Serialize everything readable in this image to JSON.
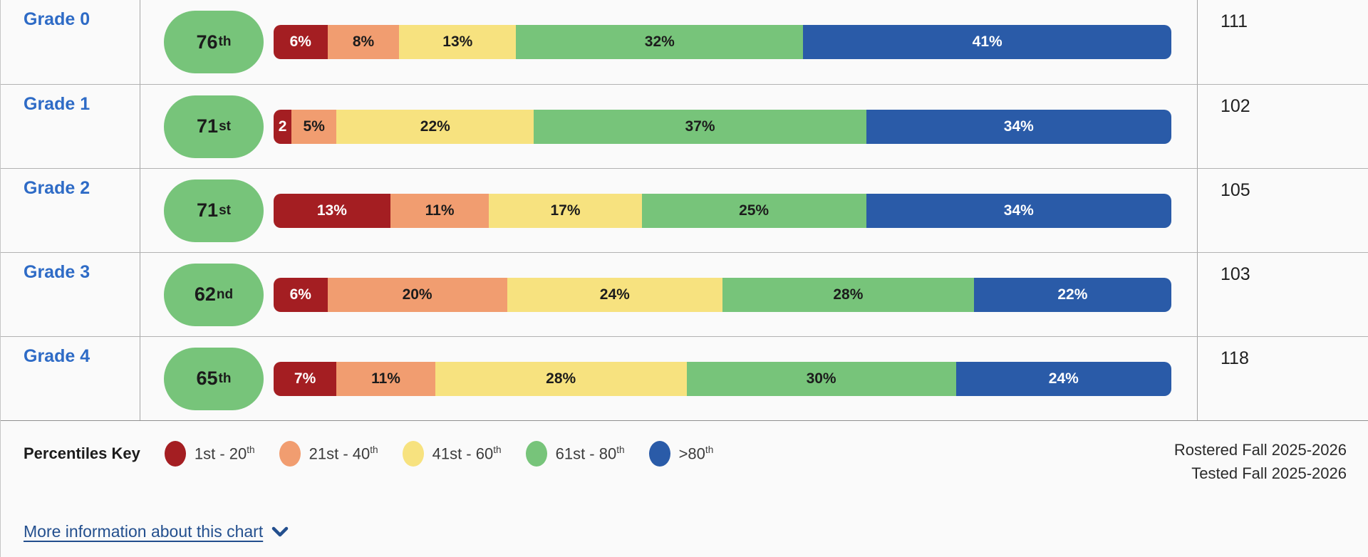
{
  "rows": [
    {
      "grade_label": "Grade 0",
      "percentile_value": "76",
      "percentile_suffix": "th",
      "count": "111",
      "segments": [
        {
          "band": "1st-20th",
          "value": 6,
          "label": "6%"
        },
        {
          "band": "21st-40th",
          "value": 8,
          "label": "8%"
        },
        {
          "band": "41st-60th",
          "value": 13,
          "label": "13%"
        },
        {
          "band": "61st-80th",
          "value": 32,
          "label": "32%"
        },
        {
          "band": "gt-80th",
          "value": 41,
          "label": "41%"
        }
      ]
    },
    {
      "grade_label": "Grade 1",
      "percentile_value": "71",
      "percentile_suffix": "st",
      "count": "102",
      "segments": [
        {
          "band": "1st-20th",
          "value": 2,
          "label": "2"
        },
        {
          "band": "21st-40th",
          "value": 5,
          "label": "5%"
        },
        {
          "band": "41st-60th",
          "value": 22,
          "label": "22%"
        },
        {
          "band": "61st-80th",
          "value": 37,
          "label": "37%"
        },
        {
          "band": "gt-80th",
          "value": 34,
          "label": "34%"
        }
      ]
    },
    {
      "grade_label": "Grade 2",
      "percentile_value": "71",
      "percentile_suffix": "st",
      "count": "105",
      "segments": [
        {
          "band": "1st-20th",
          "value": 13,
          "label": "13%"
        },
        {
          "band": "21st-40th",
          "value": 11,
          "label": "11%"
        },
        {
          "band": "41st-60th",
          "value": 17,
          "label": "17%"
        },
        {
          "band": "61st-80th",
          "value": 25,
          "label": "25%"
        },
        {
          "band": "gt-80th",
          "value": 34,
          "label": "34%"
        }
      ]
    },
    {
      "grade_label": "Grade 3",
      "percentile_value": "62",
      "percentile_suffix": "nd",
      "count": "103",
      "segments": [
        {
          "band": "1st-20th",
          "value": 6,
          "label": "6%"
        },
        {
          "band": "21st-40th",
          "value": 20,
          "label": "20%"
        },
        {
          "band": "41st-60th",
          "value": 24,
          "label": "24%"
        },
        {
          "band": "61st-80th",
          "value": 28,
          "label": "28%"
        },
        {
          "band": "gt-80th",
          "value": 22,
          "label": "22%"
        }
      ]
    },
    {
      "grade_label": "Grade 4",
      "percentile_value": "65",
      "percentile_suffix": "th",
      "count": "118",
      "segments": [
        {
          "band": "1st-20th",
          "value": 7,
          "label": "7%"
        },
        {
          "band": "21st-40th",
          "value": 11,
          "label": "11%"
        },
        {
          "band": "41st-60th",
          "value": 28,
          "label": "28%"
        },
        {
          "band": "61st-80th",
          "value": 30,
          "label": "30%"
        },
        {
          "band": "gt-80th",
          "value": 24,
          "label": "24%"
        }
      ]
    }
  ],
  "legend": {
    "title": "Percentiles Key",
    "items": [
      {
        "band": "1st-20th",
        "label": "1st - 20",
        "sup": "th",
        "color": "#a41e22",
        "text_color": "#ffffff"
      },
      {
        "band": "21st-40th",
        "label": "21st - 40",
        "sup": "th",
        "color": "#f19d70",
        "text_color": "#1c1c1c"
      },
      {
        "band": "41st-60th",
        "label": "41st - 60",
        "sup": "th",
        "color": "#f7e27f",
        "text_color": "#1c1c1c"
      },
      {
        "band": "61st-80th",
        "label": "61st - 80",
        "sup": "th",
        "color": "#77c47a",
        "text_color": "#1c1c1c"
      },
      {
        "band": "gt-80th",
        "label": ">80",
        "sup": "th",
        "color": "#2a5ba8",
        "text_color": "#ffffff"
      }
    ]
  },
  "annotations": {
    "rostered": "Rostered Fall 2025-2026",
    "tested": "Tested Fall 2025-2026"
  },
  "more_info": {
    "label": "More information about this chart",
    "icon": "chevron-down-icon"
  },
  "colors": {
    "pill_green": "#77c47a",
    "grade_link_blue": "#2e6bc6",
    "footer_link_blue": "#234f8e",
    "row_background": "#fafafa"
  },
  "chart_data": {
    "type": "bar",
    "stacked": true,
    "orientation": "horizontal",
    "categories": [
      "Grade 0",
      "Grade 1",
      "Grade 2",
      "Grade 3",
      "Grade 4"
    ],
    "series": [
      {
        "name": "1st - 20th",
        "color": "#a41e22",
        "values": [
          6,
          2,
          13,
          6,
          7
        ]
      },
      {
        "name": "21st - 40th",
        "color": "#f19d70",
        "values": [
          8,
          5,
          11,
          20,
          11
        ]
      },
      {
        "name": "41st - 60th",
        "color": "#f7e27f",
        "values": [
          13,
          22,
          17,
          24,
          28
        ]
      },
      {
        "name": "61st - 80th",
        "color": "#77c47a",
        "values": [
          32,
          37,
          25,
          28,
          30
        ]
      },
      {
        "name": ">80th",
        "color": "#2a5ba8",
        "values": [
          41,
          34,
          34,
          22,
          24
        ]
      }
    ],
    "median_percentiles": [
      "76th",
      "71st",
      "71st",
      "62nd",
      "65th"
    ],
    "counts": [
      111,
      102,
      105,
      103,
      118
    ],
    "value_unit": "%",
    "xlim": [
      0,
      100
    ],
    "legend_title": "Percentiles Key",
    "legend_position": "bottom-left",
    "annotations": [
      "Rostered Fall 2025-2026",
      "Tested Fall 2025-2026"
    ]
  }
}
